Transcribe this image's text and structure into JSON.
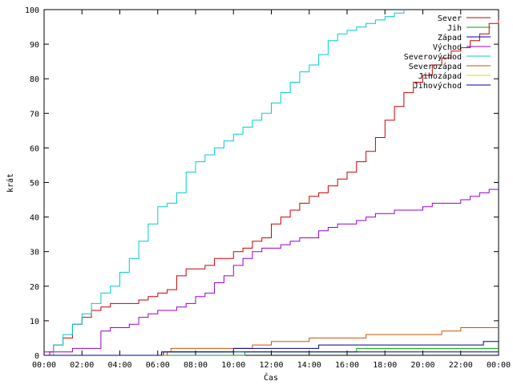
{
  "chart_data": {
    "type": "line",
    "xlabel": "Čas",
    "ylabel": "krát",
    "xlim": [
      0,
      24
    ],
    "ylim": [
      0,
      100
    ],
    "x_ticks": [
      "00:00",
      "02:00",
      "04:00",
      "06:00",
      "08:00",
      "10:00",
      "12:00",
      "14:00",
      "16:00",
      "18:00",
      "20:00",
      "22:00",
      "00:00"
    ],
    "y_ticks": [
      0,
      10,
      20,
      30,
      40,
      50,
      60,
      70,
      80,
      90,
      100
    ],
    "grid": false,
    "legend_position": "top-right",
    "series": [
      {
        "name": "Sever",
        "color": "#cc0000",
        "points": [
          [
            0,
            0
          ],
          [
            0.3,
            1
          ],
          [
            0.5,
            3
          ],
          [
            1,
            5
          ],
          [
            1.5,
            9
          ],
          [
            2,
            11
          ],
          [
            2.5,
            13
          ],
          [
            3,
            14
          ],
          [
            3.5,
            15
          ],
          [
            4,
            15
          ],
          [
            4.5,
            15
          ],
          [
            5,
            16
          ],
          [
            5.5,
            17
          ],
          [
            6,
            18
          ],
          [
            6.5,
            19
          ],
          [
            7,
            23
          ],
          [
            7.5,
            25
          ],
          [
            8,
            25
          ],
          [
            8.5,
            26
          ],
          [
            9,
            28
          ],
          [
            9.5,
            28
          ],
          [
            10,
            30
          ],
          [
            10.5,
            31
          ],
          [
            11,
            33
          ],
          [
            11.5,
            34
          ],
          [
            12,
            38
          ],
          [
            12.5,
            40
          ],
          [
            13,
            42
          ],
          [
            13.5,
            44
          ],
          [
            14,
            46
          ],
          [
            14.5,
            47
          ],
          [
            15,
            49
          ],
          [
            15.5,
            51
          ],
          [
            16,
            53
          ],
          [
            16.5,
            56
          ],
          [
            17,
            59
          ],
          [
            17.5,
            63
          ],
          [
            18,
            68
          ],
          [
            18.5,
            72
          ],
          [
            19,
            76
          ],
          [
            19.5,
            79
          ],
          [
            20,
            81
          ],
          [
            20.5,
            84
          ],
          [
            21,
            86
          ],
          [
            21.5,
            88
          ],
          [
            22,
            89
          ],
          [
            22.5,
            91
          ],
          [
            23,
            93
          ],
          [
            23.5,
            96
          ],
          [
            24,
            97
          ]
        ]
      },
      {
        "name": "Jih",
        "color": "#00aa00",
        "points": [
          [
            0,
            0
          ],
          [
            10.5,
            0
          ],
          [
            10.6,
            1
          ],
          [
            16.4,
            1
          ],
          [
            16.5,
            2
          ],
          [
            24,
            2
          ]
        ]
      },
      {
        "name": "Západ",
        "color": "#0000bb",
        "points": [
          [
            0,
            0
          ],
          [
            6.2,
            0
          ],
          [
            6.3,
            1
          ],
          [
            24,
            1
          ]
        ]
      },
      {
        "name": "Východ",
        "color": "#9900cc",
        "points": [
          [
            0,
            1
          ],
          [
            0.5,
            1
          ],
          [
            1,
            1
          ],
          [
            1.5,
            2
          ],
          [
            2,
            2
          ],
          [
            2.5,
            2
          ],
          [
            3,
            7
          ],
          [
            3.5,
            8
          ],
          [
            4,
            8
          ],
          [
            4.5,
            9
          ],
          [
            5,
            11
          ],
          [
            5.5,
            12
          ],
          [
            6,
            13
          ],
          [
            6.5,
            13
          ],
          [
            7,
            14
          ],
          [
            7.5,
            15
          ],
          [
            8,
            17
          ],
          [
            8.5,
            18
          ],
          [
            9,
            21
          ],
          [
            9.5,
            23
          ],
          [
            10,
            26
          ],
          [
            10.5,
            28
          ],
          [
            11,
            30
          ],
          [
            11.5,
            31
          ],
          [
            12,
            31
          ],
          [
            12.5,
            32
          ],
          [
            13,
            33
          ],
          [
            13.5,
            34
          ],
          [
            14,
            34
          ],
          [
            14.5,
            36
          ],
          [
            15,
            37
          ],
          [
            15.5,
            38
          ],
          [
            16,
            38
          ],
          [
            16.5,
            39
          ],
          [
            17,
            40
          ],
          [
            17.5,
            41
          ],
          [
            18,
            41
          ],
          [
            18.5,
            42
          ],
          [
            19,
            42
          ],
          [
            19.5,
            42
          ],
          [
            20,
            43
          ],
          [
            20.5,
            44
          ],
          [
            21,
            44
          ],
          [
            21.5,
            44
          ],
          [
            22,
            45
          ],
          [
            22.5,
            46
          ],
          [
            23,
            47
          ],
          [
            23.5,
            48
          ],
          [
            24,
            48
          ]
        ]
      },
      {
        "name": "Severovýchod",
        "color": "#00cccc",
        "points": [
          [
            0,
            0
          ],
          [
            0.5,
            3
          ],
          [
            1,
            6
          ],
          [
            1.5,
            9
          ],
          [
            2,
            12
          ],
          [
            2.5,
            15
          ],
          [
            3,
            18
          ],
          [
            3.5,
            20
          ],
          [
            4,
            24
          ],
          [
            4.5,
            28
          ],
          [
            5,
            33
          ],
          [
            5.5,
            38
          ],
          [
            6,
            43
          ],
          [
            6.5,
            44
          ],
          [
            7,
            47
          ],
          [
            7.5,
            53
          ],
          [
            8,
            56
          ],
          [
            8.5,
            58
          ],
          [
            9,
            60
          ],
          [
            9.5,
            62
          ],
          [
            10,
            64
          ],
          [
            10.5,
            66
          ],
          [
            11,
            68
          ],
          [
            11.5,
            70
          ],
          [
            12,
            73
          ],
          [
            12.5,
            76
          ],
          [
            13,
            79
          ],
          [
            13.5,
            82
          ],
          [
            14,
            84
          ],
          [
            14.5,
            87
          ],
          [
            15,
            91
          ],
          [
            15.5,
            93
          ],
          [
            16,
            94
          ],
          [
            16.5,
            95
          ],
          [
            17,
            96
          ],
          [
            17.5,
            97
          ],
          [
            18,
            98
          ],
          [
            18.5,
            99
          ],
          [
            19,
            100
          ]
        ]
      },
      {
        "name": "Severozápad",
        "color": "#cc5500",
        "points": [
          [
            0,
            0
          ],
          [
            6.4,
            0
          ],
          [
            6.5,
            1
          ],
          [
            6.7,
            2
          ],
          [
            10,
            2
          ],
          [
            11,
            3
          ],
          [
            12,
            4
          ],
          [
            13,
            4
          ],
          [
            14,
            5
          ],
          [
            16,
            5
          ],
          [
            17,
            6
          ],
          [
            20,
            6
          ],
          [
            21,
            7
          ],
          [
            22,
            8
          ],
          [
            24,
            8
          ]
        ]
      },
      {
        "name": "Jihozápad",
        "color": "#dddd00",
        "points": []
      },
      {
        "name": "Jihovýchod",
        "color": "#000099",
        "points": [
          [
            0,
            0
          ],
          [
            6,
            0
          ],
          [
            6.2,
            1
          ],
          [
            10,
            2
          ],
          [
            14,
            2
          ],
          [
            14.5,
            3
          ],
          [
            23,
            3
          ],
          [
            23.2,
            4
          ],
          [
            24,
            4
          ]
        ]
      }
    ]
  }
}
